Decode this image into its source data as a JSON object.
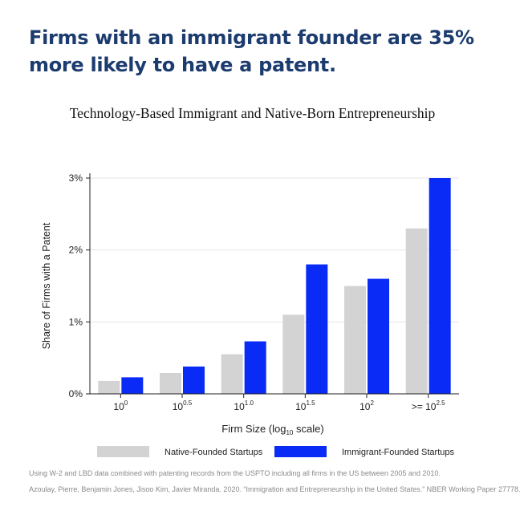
{
  "headline": "Firms with an immigrant founder are 35% more likely to have a patent.",
  "chart_data": {
    "type": "bar",
    "title": "Technology-Based Immigrant and Native-Born Entrepreneurship",
    "xlabel": "Firm Size (log10 scale)",
    "ylabel": "Share of Firms with a Patent",
    "categories": [
      "10^0",
      "10^0.5",
      "10^1.0",
      "10^1.5",
      "10^2",
      ">= 10^2.5"
    ],
    "category_labels": [
      {
        "prefix": "",
        "base": "10",
        "exp": "0"
      },
      {
        "prefix": "",
        "base": "10",
        "exp": "0.5"
      },
      {
        "prefix": "",
        "base": "10",
        "exp": "1.0"
      },
      {
        "prefix": "",
        "base": "10",
        "exp": "1.5"
      },
      {
        "prefix": "",
        "base": "10",
        "exp": "2"
      },
      {
        "prefix": ">= ",
        "base": "10",
        "exp": "2.5"
      }
    ],
    "series": [
      {
        "name": "Native-Founded Startups",
        "color": "#d3d3d3",
        "values": [
          0.18,
          0.29,
          0.55,
          1.1,
          1.5,
          2.3
        ]
      },
      {
        "name": "Immigrant-Founded Startups",
        "color": "#0a2bf5",
        "values": [
          0.23,
          0.38,
          0.73,
          1.8,
          1.6,
          3.0
        ]
      }
    ],
    "ylim": [
      0,
      3.0
    ],
    "yticks": [
      0,
      1,
      2,
      3
    ],
    "ytick_labels": [
      "0%",
      "1%",
      "2%",
      "3%"
    ],
    "grid": true,
    "legend_position": "bottom"
  },
  "footnotes": {
    "line1": "Using W-2 and LBD data combined with patenting records from the USPTO including all firms in the US between 2005 and 2010.",
    "line2": "Azoulay, Pierre, Benjamin Jones, Jisoo Kim, Javier Miranda. 2020. “Immigration and Entrepreneurship in the United States.” NBER Working Paper 27778."
  }
}
